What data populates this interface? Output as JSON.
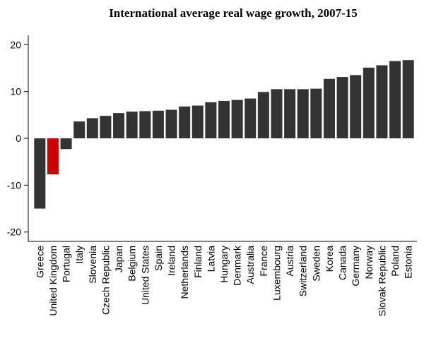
{
  "chart_data": {
    "type": "bar",
    "title": "International average real wage growth, 2007-15",
    "categories": [
      "Greece",
      "United Kingdom",
      "Portugal",
      "Italy",
      "Slovenia",
      "Czech Republic",
      "Japan",
      "Belgium",
      "United States",
      "Spain",
      "Ireland",
      "Netherlands",
      "Finland",
      "Latvia",
      "Hungary",
      "Denmark",
      "Australia",
      "France",
      "Luxembourg",
      "Austria",
      "Switzerland",
      "Sweden",
      "Korea",
      "Canada",
      "Germany",
      "Norway",
      "Slovak Republic",
      "Poland",
      "Estonia"
    ],
    "values": [
      -15,
      -7.7,
      -2.3,
      3.6,
      4.3,
      4.8,
      5.4,
      5.7,
      5.8,
      5.9,
      6.1,
      6.8,
      7.0,
      7.7,
      8.0,
      8.2,
      8.5,
      9.9,
      10.5,
      10.5,
      10.5,
      10.6,
      12.7,
      13.1,
      13.5,
      15.1,
      15.6,
      16.5,
      16.7
    ],
    "colors": [
      "#333333",
      "#cc0000",
      "#333333",
      "#333333",
      "#333333",
      "#333333",
      "#333333",
      "#333333",
      "#333333",
      "#333333",
      "#333333",
      "#333333",
      "#333333",
      "#333333",
      "#333333",
      "#333333",
      "#333333",
      "#333333",
      "#333333",
      "#333333",
      "#333333",
      "#333333",
      "#333333",
      "#333333",
      "#333333",
      "#333333",
      "#333333",
      "#333333",
      "#333333"
    ],
    "ylim": [
      -22,
      22
    ],
    "yticks": [
      -20,
      -10,
      0,
      10,
      20
    ],
    "grid": false
  }
}
